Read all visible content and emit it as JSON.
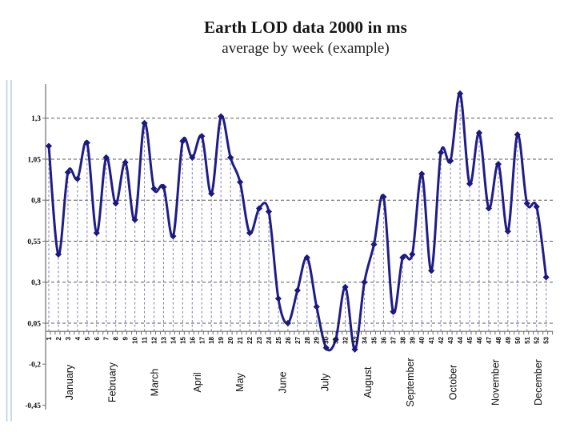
{
  "title": "Earth LOD data 2000 in ms",
  "subtitle": "average by week (example)",
  "chart_data": {
    "type": "line",
    "title": "Earth LOD data 2000 in ms",
    "subtitle": "average by week (example)",
    "xlabel": "",
    "ylabel": "",
    "x": [
      1,
      2,
      3,
      4,
      5,
      6,
      7,
      8,
      9,
      10,
      11,
      12,
      13,
      14,
      15,
      16,
      17,
      18,
      19,
      20,
      21,
      22,
      23,
      24,
      25,
      26,
      27,
      28,
      29,
      30,
      31,
      32,
      33,
      34,
      35,
      36,
      37,
      38,
      39,
      40,
      41,
      42,
      43,
      44,
      45,
      46,
      47,
      48,
      49,
      50,
      51,
      52,
      53
    ],
    "values": [
      1.13,
      0.47,
      0.97,
      0.93,
      1.15,
      0.6,
      1.06,
      0.78,
      1.03,
      0.68,
      1.27,
      0.87,
      0.88,
      0.58,
      1.16,
      1.06,
      1.19,
      0.84,
      1.31,
      1.06,
      0.91,
      0.6,
      0.75,
      0.73,
      0.2,
      0.05,
      0.25,
      0.45,
      0.15,
      -0.1,
      -0.05,
      0.27,
      -0.11,
      0.3,
      0.53,
      0.82,
      0.12,
      0.45,
      0.47,
      0.96,
      0.37,
      1.09,
      1.04,
      1.45,
      0.9,
      1.21,
      0.75,
      1.02,
      0.61,
      1.2,
      0.78,
      0.76,
      0.33
    ],
    "week_labels": [
      "1",
      "2",
      "3",
      "4",
      "5",
      "6",
      "7",
      "8",
      "9",
      "10",
      "11",
      "12",
      "13",
      "14",
      "15",
      "16",
      "17",
      "18",
      "19",
      "20",
      "21",
      "22",
      "23",
      "24",
      "25",
      "26",
      "27",
      "28",
      "29",
      "30",
      "31",
      "32",
      "33",
      "34",
      "35",
      "36",
      "37",
      "38",
      "39",
      "40",
      "41",
      "42",
      "43",
      "44",
      "45",
      "46",
      "47",
      "48",
      "49",
      "50",
      "51",
      "52",
      "53"
    ],
    "months": [
      "January",
      "February",
      "March",
      "April",
      "May",
      "June",
      "July",
      "August",
      "September",
      "October",
      "November",
      "December"
    ],
    "y_tick_labels": [
      {
        "label": "1,3",
        "value": 1.3
      },
      {
        "label": "1,05",
        "value": 1.05
      },
      {
        "label": "0,8",
        "value": 0.8
      },
      {
        "label": "0,55",
        "value": 0.55
      },
      {
        "label": "0,3",
        "value": 0.3
      },
      {
        "label": "0,05",
        "value": 0.05
      },
      {
        "label": "-0,2",
        "value": -0.2
      },
      {
        "label": "-0,45",
        "value": -0.45
      }
    ],
    "y_gridline_values": [
      1.3,
      1.05,
      0.8,
      0.55,
      0.3,
      0.05
    ],
    "ylim": [
      -0.45,
      1.45
    ],
    "legend": "none",
    "grid": "horizontal dashed gridlines plus vertical dashed drop lines from each point to the zero axis",
    "marker": "diamond",
    "line_smoothing": true,
    "colors": {
      "line": "#201c88",
      "marker": "#1c1880",
      "drop_line": "#8c8cb8",
      "gridline": "#5a5a5a",
      "axis": "#6e6e6e",
      "label_text": "#111111",
      "left_margin_lines": "#bdd0e3",
      "background": "#ffffff"
    }
  }
}
